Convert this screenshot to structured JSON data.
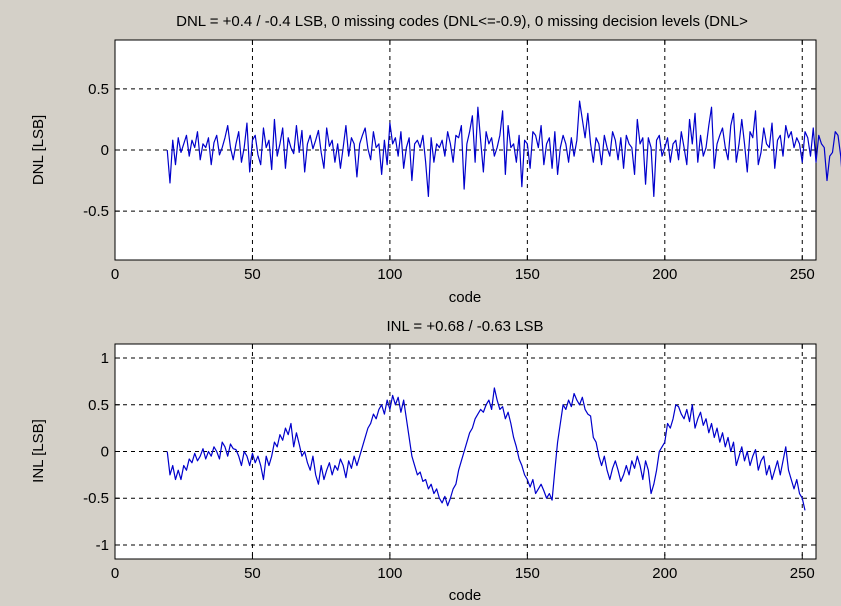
{
  "chart_data": [
    {
      "type": "line",
      "title": "DNL = +0.4 / -0.4 LSB,  0 missing codes (DNL<=-0.9), 0 missing decision levels (DNL>",
      "xlabel": "code",
      "ylabel": "DNL [LSB]",
      "xlim": [
        0,
        255
      ],
      "ylim": [
        -0.9,
        0.9
      ],
      "xticks": [
        0,
        50,
        100,
        150,
        200,
        250
      ],
      "xtick_labels": [
        "0",
        "50",
        "100",
        "150",
        "200",
        "250"
      ],
      "yticks": [
        -0.5,
        0,
        0.5
      ],
      "ytick_labels": [
        "-0.5",
        "0",
        "0.5"
      ],
      "grid": true,
      "series": [
        {
          "color": "#0000cc",
          "x_start": 19,
          "x_step": 1,
          "values": [
            0,
            -0.27,
            0.08,
            -0.12,
            0.1,
            -0.02,
            0.05,
            0.12,
            -0.05,
            0.08,
            0.02,
            0.15,
            -0.08,
            0.05,
            0.02,
            0.1,
            -0.12,
            0.06,
            0.12,
            -0.04,
            0.02,
            0.1,
            0.2,
            0.02,
            -0.08,
            0.05,
            0.15,
            -0.1,
            0.02,
            0.22,
            -0.18,
            0.08,
            0.12,
            -0.04,
            -0.12,
            0.18,
            0.02,
            0.08,
            -0.16,
            0.25,
            -0.05,
            0.05,
            0.18,
            -0.15,
            0.1,
            0.02,
            -0.03,
            0.2,
            -0.02,
            0.16,
            -0.18,
            0.05,
            0.12,
            0.01,
            0.08,
            0.16,
            -0.02,
            -0.15,
            0.18,
            0.03,
            0.08,
            -0.1,
            0.05,
            -0.15,
            0.02,
            0.2,
            -0.05,
            0.1,
            0.05,
            -0.22,
            0.05,
            0.12,
            0.18,
            0.01,
            -0.08,
            0.15,
            0.02,
            0.05,
            -0.2,
            0.08,
            -0.12,
            0.22,
            0.05,
            0.1,
            -0.05,
            0.15,
            -0.15,
            0.02,
            0.1,
            -0.25,
            0.05,
            0.08,
            0.02,
            0.12,
            -0.1,
            -0.38,
            0.1,
            -0.1,
            0.05,
            0.02,
            0.08,
            -0.05,
            0.15,
            0.05,
            -0.1,
            0.12,
            0.1,
            0.2,
            -0.32,
            0.05,
            0.15,
            0.28,
            -0.1,
            0.35,
            0.08,
            -0.18,
            0.15,
            0.05,
            0.1,
            -0.05,
            0.02,
            0.12,
            0.32,
            -0.2,
            0.2,
            0.02,
            0.05,
            -0.1,
            0.12,
            -0.3,
            0.08,
            0.05,
            -0.15,
            0.15,
            0.12,
            0.02,
            0.2,
            -0.12,
            0.05,
            0.1,
            -0.15,
            0.15,
            -0.2,
            0.02,
            0.12,
            0.05,
            -0.1,
            0.1,
            -0.05,
            0.08,
            0.4,
            0.25,
            0.1,
            0.3,
            0.05,
            -0.1,
            0.1,
            0.05,
            -0.12,
            0.12,
            0.02,
            -0.05,
            0.15,
            0.08,
            -0.08,
            0.1,
            -0.15,
            0.12,
            0.05,
            0.02,
            -0.2,
            0.25,
            0.05,
            0.1,
            -0.28,
            0.1,
            0.02,
            -0.38,
            0.08,
            0.12,
            -0.05,
            0.02,
            0.1,
            -0.1,
            0.05,
            0.08,
            -0.08,
            0.15,
            0.02,
            -0.12,
            0.25,
            0.05,
            0.3,
            -0.1,
            0.12,
            -0.05,
            0.02,
            0.2,
            0.35,
            -0.15,
            0.05,
            0.12,
            0.18,
            0.02,
            -0.08,
            0.2,
            0.3,
            -0.1,
            0.05,
            0.25,
            0.05,
            -0.18,
            0.15,
            0.1,
            0.32,
            -0.12,
            -0.02,
            0.18,
            0.05,
            0.02,
            0.22,
            -0.15,
            0.08,
            0.12,
            -0.05,
            0.2,
            0.1,
            0.15,
            0.02,
            0.1,
            0.05,
            -0.1,
            0.15,
            0.1,
            -0.05,
            0.18,
            -0.1,
            0.12,
            0.05,
            0.02,
            -0.25,
            -0.05,
            -0.02,
            0.15,
            0.12,
            -0.05,
            -0.35,
            0.1,
            -0.18,
            -0.25
          ]
        }
      ]
    },
    {
      "type": "line",
      "title": "INL = +0.68 / -0.63 LSB",
      "xlabel": "code",
      "ylabel": "INL [LSB]",
      "xlim": [
        0,
        255
      ],
      "ylim": [
        -1.15,
        1.15
      ],
      "xticks": [
        0,
        50,
        100,
        150,
        200,
        250
      ],
      "xtick_labels": [
        "0",
        "50",
        "100",
        "150",
        "200",
        "250"
      ],
      "yticks": [
        -1,
        -0.5,
        0,
        0.5,
        1
      ],
      "ytick_labels": [
        "-1",
        "-0.5",
        "0",
        "0.5",
        "1"
      ],
      "grid": true,
      "series": [
        {
          "color": "#0000cc",
          "x_start": 19,
          "x_step": 1,
          "values": [
            0,
            -0.25,
            -0.15,
            -0.3,
            -0.2,
            -0.3,
            -0.15,
            -0.2,
            -0.08,
            -0.12,
            -0.02,
            -0.1,
            -0.05,
            0.03,
            -0.08,
            0,
            -0.05,
            0.05,
            0,
            -0.08,
            0.1,
            0.05,
            -0.05,
            0.08,
            0.03,
            0.02,
            -0.05,
            -0.15,
            0,
            -0.05,
            -0.15,
            -0.02,
            -0.12,
            -0.05,
            -0.15,
            -0.3,
            -0.05,
            -0.15,
            -0.05,
            0.1,
            0.05,
            0.18,
            0.12,
            0.25,
            0.18,
            0.3,
            0.05,
            0.2,
            0.08,
            -0.05,
            0,
            -0.12,
            -0.2,
            -0.05,
            -0.25,
            -0.35,
            -0.15,
            -0.3,
            -0.2,
            -0.12,
            -0.25,
            -0.15,
            -0.2,
            -0.08,
            -0.15,
            -0.28,
            -0.1,
            -0.18,
            -0.05,
            -0.15,
            -0.05,
            0.05,
            0.15,
            0.25,
            0.3,
            0.4,
            0.35,
            0.45,
            0.5,
            0.4,
            0.55,
            0.45,
            0.6,
            0.5,
            0.58,
            0.42,
            0.55,
            0.35,
            0.15,
            -0.05,
            -0.15,
            -0.25,
            -0.22,
            -0.32,
            -0.3,
            -0.4,
            -0.35,
            -0.45,
            -0.4,
            -0.5,
            -0.55,
            -0.48,
            -0.58,
            -0.5,
            -0.4,
            -0.35,
            -0.2,
            -0.1,
            0,
            0.1,
            0.2,
            0.25,
            0.35,
            0.4,
            0.45,
            0.42,
            0.5,
            0.55,
            0.45,
            0.68,
            0.55,
            0.45,
            0.48,
            0.35,
            0.42,
            0.3,
            0.15,
            0.05,
            -0.08,
            -0.15,
            -0.25,
            -0.3,
            -0.38,
            -0.3,
            -0.45,
            -0.4,
            -0.35,
            -0.42,
            -0.5,
            -0.45,
            -0.52,
            -0.2,
            0.1,
            0.3,
            0.5,
            0.45,
            0.55,
            0.48,
            0.62,
            0.55,
            0.5,
            0.58,
            0.45,
            0.4,
            0.38,
            0.15,
            0.1,
            -0.05,
            -0.15,
            -0.05,
            -0.2,
            -0.3,
            -0.18,
            -0.1,
            -0.2,
            -0.32,
            -0.25,
            -0.15,
            -0.25,
            -0.1,
            -0.18,
            -0.05,
            -0.15,
            -0.3,
            -0.1,
            -0.2,
            -0.45,
            -0.35,
            -0.2,
            0,
            0.05,
            0.1,
            0.3,
            0.25,
            0.35,
            0.5,
            0.48,
            0.4,
            0.35,
            0.45,
            0.32,
            0.5,
            0.25,
            0.35,
            0.42,
            0.28,
            0.35,
            0.2,
            0.3,
            0.15,
            0.25,
            0.1,
            0.2,
            0.05,
            0.15,
            0,
            0.1,
            -0.15,
            -0.05,
            0.05,
            -0.1,
            0,
            -0.15,
            -0.05,
            0.02,
            -0.2,
            -0.1,
            -0.05,
            -0.25,
            -0.15,
            -0.3,
            -0.2,
            -0.1,
            -0.25,
            -0.1,
            0.05,
            -0.2,
            -0.3,
            -0.4,
            -0.3,
            -0.45,
            -0.5,
            -0.63
          ]
        }
      ]
    }
  ]
}
